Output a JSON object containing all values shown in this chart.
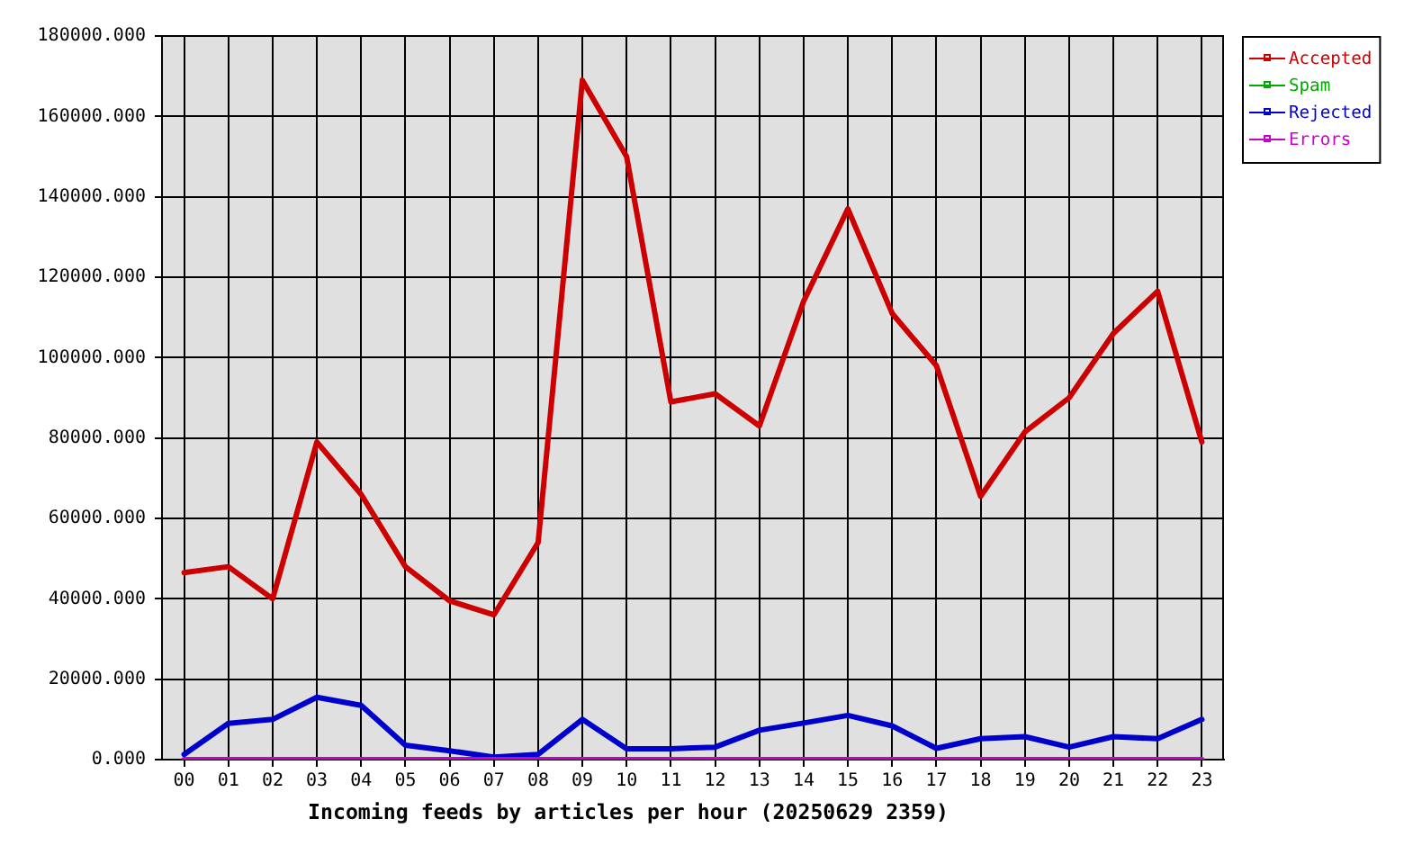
{
  "chart_data": {
    "type": "line",
    "xlabel": "Incoming feeds by articles per hour (20250629 2359)",
    "categories": [
      "00",
      "01",
      "02",
      "03",
      "04",
      "05",
      "06",
      "07",
      "08",
      "09",
      "10",
      "11",
      "12",
      "13",
      "14",
      "15",
      "16",
      "17",
      "18",
      "19",
      "20",
      "21",
      "22",
      "23"
    ],
    "series": [
      {
        "name": "Accepted",
        "color": "#cc0000",
        "values": [
          46500,
          48000,
          40000,
          79000,
          66000,
          48000,
          39500,
          36000,
          54000,
          169000,
          150000,
          89000,
          91000,
          83000,
          114000,
          137000,
          111000,
          98000,
          65500,
          81500,
          90000,
          106000,
          116500,
          79000
        ]
      },
      {
        "name": "Spam",
        "color": "#00aa00",
        "values": [
          null,
          null,
          null,
          null,
          null,
          null,
          null,
          null,
          null,
          null,
          null,
          null,
          null,
          null,
          null,
          null,
          null,
          null,
          null,
          null,
          null,
          null,
          null,
          null
        ]
      },
      {
        "name": "Rejected",
        "color": "#0000cc",
        "values": [
          1300,
          9000,
          10000,
          15500,
          13500,
          3600,
          2200,
          600,
          1300,
          10000,
          2700,
          2700,
          3100,
          7300,
          9100,
          11000,
          8400,
          2800,
          5200,
          5700,
          3100,
          5700,
          5200,
          10000
        ]
      },
      {
        "name": "Errors",
        "color": "#cc00cc",
        "values": [
          0,
          0,
          0,
          0,
          0,
          0,
          0,
          0,
          0,
          0,
          0,
          0,
          0,
          0,
          0,
          0,
          0,
          0,
          0,
          0,
          0,
          0,
          0,
          0
        ]
      }
    ],
    "ylim": [
      0,
      180000
    ],
    "yticks": [
      {
        "value": 0,
        "label": "0.000"
      },
      {
        "value": 20000,
        "label": "20000.000"
      },
      {
        "value": 40000,
        "label": "40000.000"
      },
      {
        "value": 60000,
        "label": "60000.000"
      },
      {
        "value": 80000,
        "label": "80000.000"
      },
      {
        "value": 100000,
        "label": "100000.000"
      },
      {
        "value": 120000,
        "label": "120000.000"
      },
      {
        "value": 140000,
        "label": "140000.000"
      },
      {
        "value": 160000,
        "label": "160000.000"
      },
      {
        "value": 180000,
        "label": "180000.000"
      }
    ],
    "grid": true,
    "legend": "top right",
    "marker": "none",
    "line_style": "solid"
  }
}
